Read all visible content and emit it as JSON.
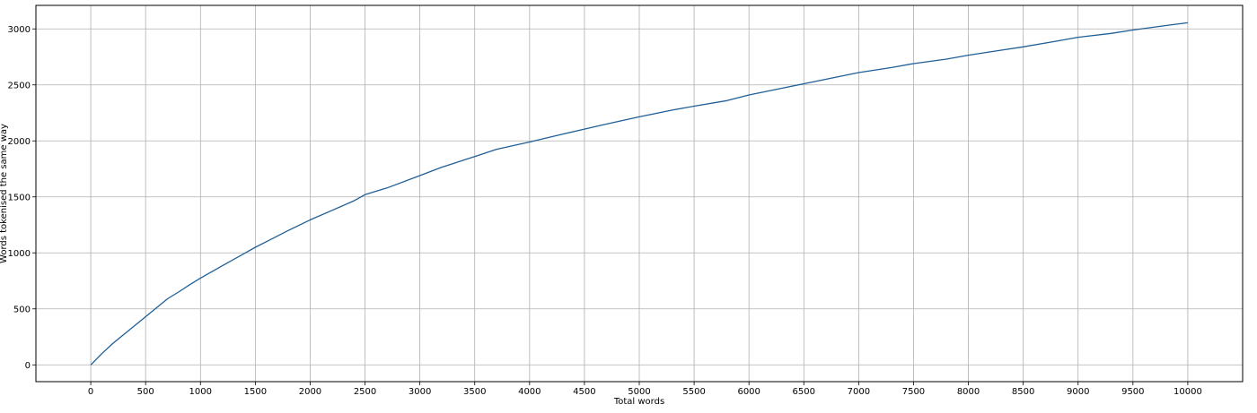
{
  "chart_data": {
    "type": "line",
    "title": "",
    "xlabel": "Total words",
    "ylabel": "Words tokenised the same way",
    "xlim": [
      -500,
      10500
    ],
    "ylim": [
      -150,
      3210
    ],
    "grid": true,
    "xticks": [
      0,
      500,
      1000,
      1500,
      2000,
      2500,
      3000,
      3500,
      4000,
      4500,
      5000,
      5500,
      6000,
      6500,
      7000,
      7500,
      8000,
      8500,
      9000,
      9500,
      10000
    ],
    "yticks": [
      0,
      500,
      1000,
      1500,
      2000,
      2500,
      3000
    ],
    "series": [
      {
        "color": "#1f5f96",
        "x": [
          0,
          100,
          200,
          300,
          400,
          500,
          600,
          700,
          800,
          900,
          1000,
          1200,
          1400,
          1500,
          1600,
          1800,
          2000,
          2200,
          2400,
          2500,
          2700,
          3000,
          3200,
          3500,
          3700,
          4000,
          4300,
          4500,
          4700,
          5000,
          5300,
          5500,
          5800,
          6000,
          6300,
          6500,
          6800,
          7000,
          7300,
          7500,
          7800,
          8000,
          8300,
          8500,
          8800,
          9000,
          9300,
          9500,
          9800,
          10000
        ],
        "y": [
          0,
          100,
          190,
          270,
          350,
          430,
          510,
          590,
          650,
          715,
          775,
          885,
          995,
          1050,
          1100,
          1200,
          1295,
          1380,
          1465,
          1520,
          1580,
          1690,
          1765,
          1860,
          1925,
          1990,
          2060,
          2105,
          2150,
          2215,
          2275,
          2310,
          2360,
          2410,
          2470,
          2510,
          2570,
          2610,
          2655,
          2690,
          2730,
          2765,
          2810,
          2840,
          2890,
          2925,
          2960,
          2990,
          3030,
          3055
        ]
      }
    ]
  }
}
